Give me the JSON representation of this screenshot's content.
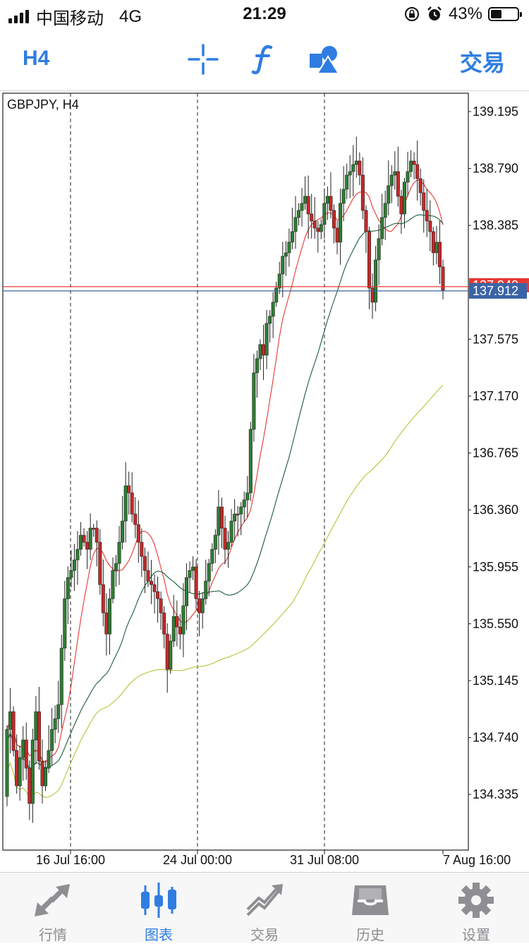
{
  "status_bar": {
    "carrier": "中国移动",
    "network": "4G",
    "time": "21:29",
    "battery": "43%",
    "battery_level": 0.43
  },
  "toolbar": {
    "period": "H4",
    "crosshair_icon": "crosshair-icon",
    "indicators_icon": "function-icon",
    "objects_icon": "shapes-icon",
    "trade_label": "交易"
  },
  "chart": {
    "symbol_label": "GBPJPY, H4",
    "price_labels": [
      "139.195",
      "138.790",
      "138.385",
      "137.575",
      "137.170",
      "136.765",
      "136.360",
      "135.955",
      "135.550",
      "135.145",
      "134.740",
      "134.335"
    ],
    "current_bid": "137.912",
    "current_ask_partial": "137.940",
    "date_labels": [
      "16 Jul 16:00",
      "24 Jul 00:00",
      "31 Jul 08:00",
      "7 Aug 16:00"
    ],
    "colors": {
      "bull": "#2e7d32",
      "bear": "#c62828",
      "bid_line": "#3b64a6",
      "ask_line": "#e53935",
      "ma_fast": "#e53935",
      "ma_mid": "#1b5e3a",
      "ma_slow": "#b7c43a"
    }
  },
  "tabbar": {
    "items": [
      {
        "label": "行情",
        "icon": "quotes-arrows-icon",
        "active": false
      },
      {
        "label": "图表",
        "icon": "candlestick-chart-icon",
        "active": true
      },
      {
        "label": "交易",
        "icon": "trade-trend-icon",
        "active": false
      },
      {
        "label": "历史",
        "icon": "history-tray-icon",
        "active": false
      },
      {
        "label": "设置",
        "icon": "settings-gear-icon",
        "active": false
      }
    ]
  }
}
